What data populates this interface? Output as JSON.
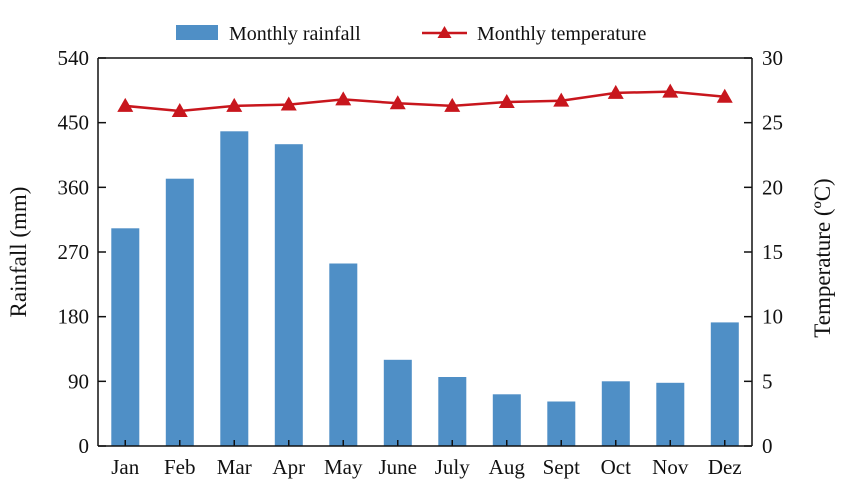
{
  "chart_data": {
    "type": "bar",
    "categories": [
      "Jan",
      "Feb",
      "Mar",
      "Apr",
      "May",
      "June",
      "July",
      "Aug",
      "Sept",
      "Oct",
      "Nov",
      "Dez"
    ],
    "series": [
      {
        "name": "Monthly rainfall",
        "type": "bar",
        "axis": "left",
        "color": "#4f8fc6",
        "values": [
          303,
          372,
          438,
          420,
          254,
          120,
          96,
          72,
          62,
          90,
          88,
          172
        ]
      },
      {
        "name": "Monthly temperature",
        "type": "line",
        "axis": "right",
        "marker": "triangle",
        "color": "#c8161d",
        "values": [
          26.3,
          25.9,
          26.3,
          26.4,
          26.8,
          26.5,
          26.3,
          26.6,
          26.7,
          27.3,
          27.4,
          27.0
        ]
      }
    ],
    "ylabel": "Rainfall (mm)",
    "ylabel_right": "Temperature (ºC)",
    "ylim": [
      0,
      540
    ],
    "ylim_right": [
      0,
      30
    ],
    "yticks": [
      "0",
      "90",
      "180",
      "270",
      "360",
      "450",
      "540"
    ],
    "yticks_right": [
      "0",
      "5",
      "10",
      "15",
      "20",
      "25",
      "30"
    ],
    "grid": false,
    "legend_position": "top"
  }
}
